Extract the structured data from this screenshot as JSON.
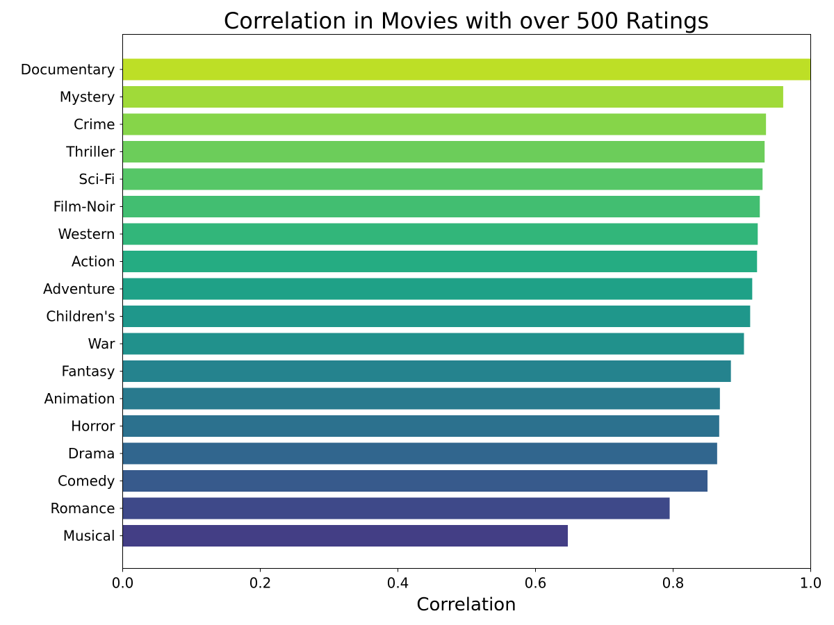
{
  "chart_data": {
    "type": "bar",
    "orientation": "horizontal",
    "title": "Correlation in Movies with over 500 Ratings",
    "xlabel": "Correlation",
    "ylabel": "",
    "xlim": [
      0,
      1.0
    ],
    "x_ticks": [
      "0.0",
      "0.2",
      "0.4",
      "0.6",
      "0.8",
      "1.0"
    ],
    "grid": false,
    "categories": [
      "Documentary",
      "Mystery",
      "Crime",
      "Thriller",
      "Sci-Fi",
      "Film-Noir",
      "Western",
      "Action",
      "Adventure",
      "Children's",
      "War",
      "Fantasy",
      "Animation",
      "Horror",
      "Drama",
      "Comedy",
      "Romance",
      "Musical"
    ],
    "values": [
      1.0,
      0.96,
      0.935,
      0.933,
      0.93,
      0.926,
      0.923,
      0.922,
      0.915,
      0.912,
      0.903,
      0.884,
      0.868,
      0.867,
      0.864,
      0.85,
      0.795,
      0.647
    ],
    "colors": [
      "#bddf26",
      "#a0da39",
      "#86d549",
      "#6ccd5a",
      "#56c667",
      "#42be71",
      "#32b67a",
      "#25ac82",
      "#1fa187",
      "#1f978b",
      "#21918c",
      "#25838e",
      "#297a8e",
      "#2c718e",
      "#31668e",
      "#375a8c",
      "#3e4989",
      "#433e85"
    ]
  }
}
